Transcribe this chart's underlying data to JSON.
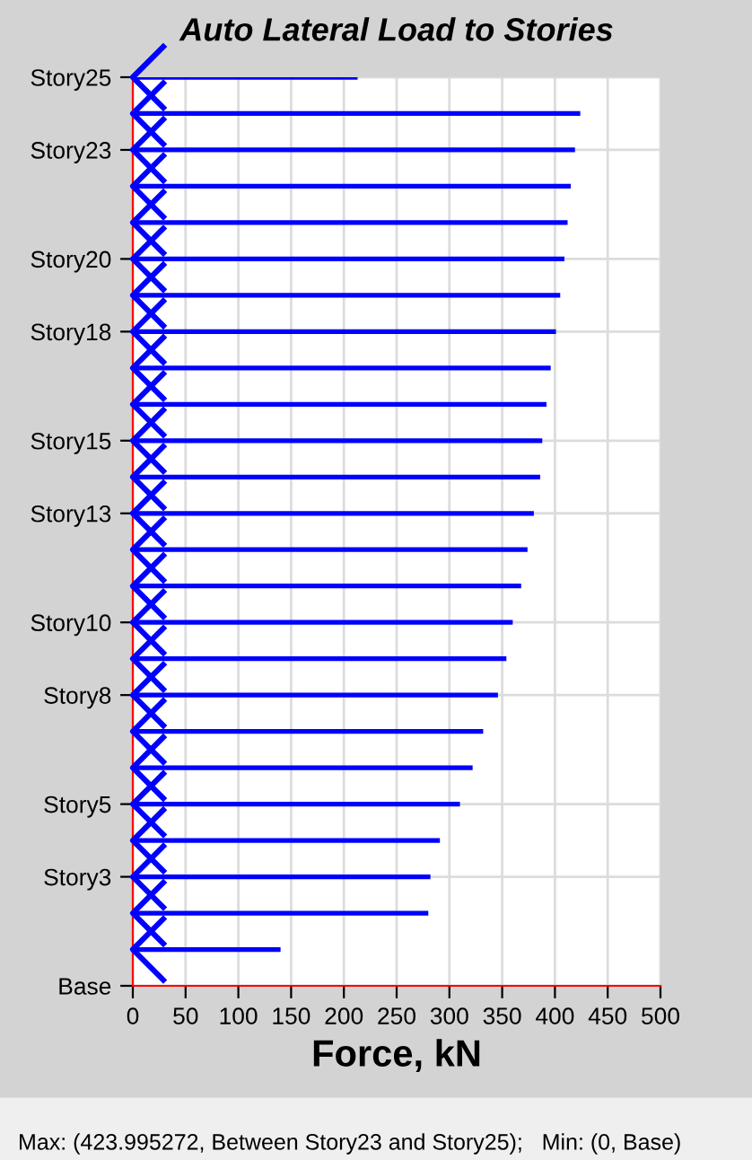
{
  "chart_data": {
    "type": "bar",
    "orientation": "horizontal",
    "title": "Auto Lateral Load to Stories",
    "xlabel": "Force, kN",
    "categories": [
      "Story25",
      null,
      "Story23",
      null,
      null,
      "Story20",
      null,
      "Story18",
      null,
      null,
      "Story15",
      null,
      "Story13",
      null,
      null,
      "Story10",
      null,
      "Story8",
      null,
      null,
      "Story5",
      null,
      "Story3",
      null,
      null,
      "Base"
    ],
    "values": [
      213,
      424,
      419,
      415,
      412,
      409,
      405,
      401,
      396,
      392,
      388,
      386,
      380,
      374,
      368,
      360,
      354,
      346,
      332,
      322,
      310,
      291,
      282,
      280,
      140,
      0
    ],
    "color": "#0000ff",
    "xlim": [
      0,
      500
    ],
    "xticks": [
      0,
      50,
      100,
      150,
      200,
      250,
      300,
      350,
      400,
      450,
      500
    ],
    "grid": true,
    "annotations": [
      "Max: (423.995272, Between Story23 and Story25);   Min: (0, Base)"
    ]
  }
}
